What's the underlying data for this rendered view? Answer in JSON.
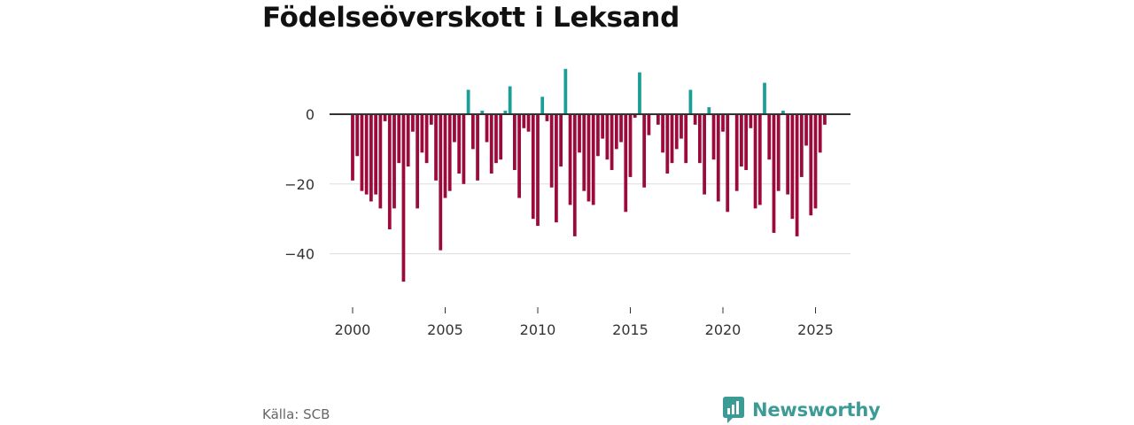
{
  "title": "Födelseöverskott i Leksand",
  "source": "Källa: SCB",
  "brand": "Newsworthy",
  "colors": {
    "positive": "#1a9e96",
    "negative": "#9c0a3c",
    "zero_line": "#333333",
    "grid": "#dddddd",
    "brand": "#3d9b96"
  },
  "chart_data": {
    "type": "bar",
    "title": "Födelseöverskott i Leksand",
    "xlabel": "",
    "ylabel": "",
    "frequency": "quarterly",
    "x_start": 2000,
    "periods_per_year": 4,
    "xlim": [
      1999.5,
      2027.25
    ],
    "ylim": [
      -52,
      16
    ],
    "x_ticks": [
      2000,
      2005,
      2010,
      2015,
      2020,
      2025
    ],
    "x_tick_labels": [
      "2000",
      "2005",
      "2010",
      "2015",
      "2020",
      "2025"
    ],
    "y_ticks": [
      0,
      -20,
      -40
    ],
    "y_tick_labels": [
      "0",
      "−20",
      "−40"
    ],
    "values": [
      -19,
      -12,
      -22,
      -23,
      -25,
      -23,
      -27,
      -2,
      -33,
      -27,
      -14,
      -48,
      -15,
      -5,
      -27,
      -11,
      -14,
      -3,
      -19,
      -39,
      -24,
      -22,
      -8,
      -17,
      -20,
      7,
      -10,
      -19,
      1,
      -8,
      -17,
      -14,
      -13,
      1,
      8,
      -16,
      -24,
      -4,
      -5,
      -30,
      -32,
      5,
      -2,
      -21,
      -31,
      -15,
      13,
      -26,
      -35,
      -11,
      -22,
      -25,
      -26,
      -12,
      -7,
      -13,
      -16,
      -10,
      -8,
      -28,
      -18,
      -1,
      12,
      -21,
      -6,
      0,
      -3,
      -11,
      -17,
      -14,
      -10,
      -7,
      -14,
      7,
      -3,
      -14,
      -23,
      2,
      -13,
      -25,
      -5,
      -28,
      0,
      -22,
      -15,
      -16,
      -4,
      -27,
      -26,
      9,
      -13,
      -34,
      -22,
      1,
      -23,
      -30,
      -35,
      -18,
      -9,
      -29,
      -27,
      -11,
      -3
    ]
  }
}
